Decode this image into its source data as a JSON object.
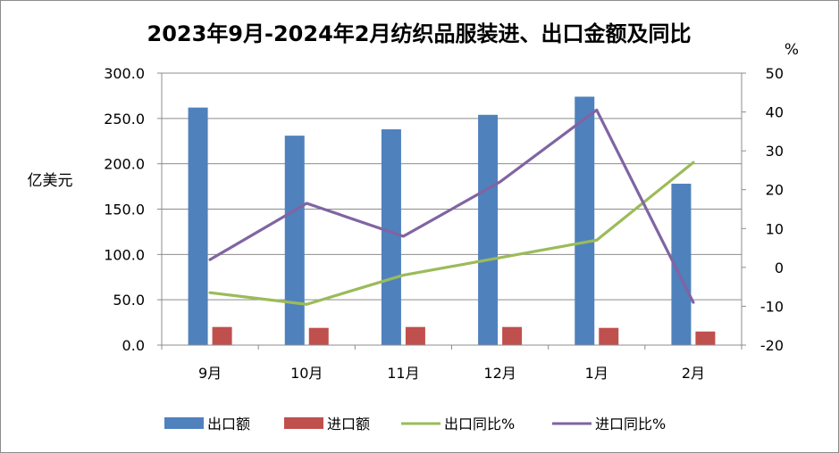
{
  "chart_data": {
    "type": "bar",
    "title": "2023年9月-2024年2月纺织品服装进、出口金额及同比",
    "categories": [
      "9月",
      "10月",
      "11月",
      "12月",
      "1月",
      "2月"
    ],
    "y_left": {
      "label": "亿美元",
      "lim": [
        0,
        300
      ],
      "ticks": [
        "0.0",
        "50.0",
        "100.0",
        "150.0",
        "200.0",
        "250.0",
        "300.0"
      ]
    },
    "y_right": {
      "label": "%",
      "lim": [
        -20,
        50
      ],
      "ticks": [
        "-20",
        "-10",
        "0",
        "10",
        "20",
        "30",
        "40",
        "50"
      ]
    },
    "grid": true,
    "legend_position": "bottom",
    "series": [
      {
        "name": "出口额",
        "type": "bar",
        "axis": "left",
        "color": "#4f81bd",
        "values": [
          262,
          231,
          238,
          254,
          274,
          178
        ]
      },
      {
        "name": "进口额",
        "type": "bar",
        "axis": "left",
        "color": "#c0504d",
        "values": [
          20,
          19,
          20,
          20,
          19,
          15
        ]
      },
      {
        "name": "出口同比%",
        "type": "line",
        "axis": "right",
        "color": "#9bbb59",
        "values": [
          -6.5,
          -9.5,
          -2,
          2.5,
          7,
          27
        ]
      },
      {
        "name": "进口同比%",
        "type": "line",
        "axis": "right",
        "color": "#8064a2",
        "values": [
          2,
          16.5,
          8,
          22,
          40.5,
          -9
        ]
      }
    ]
  }
}
